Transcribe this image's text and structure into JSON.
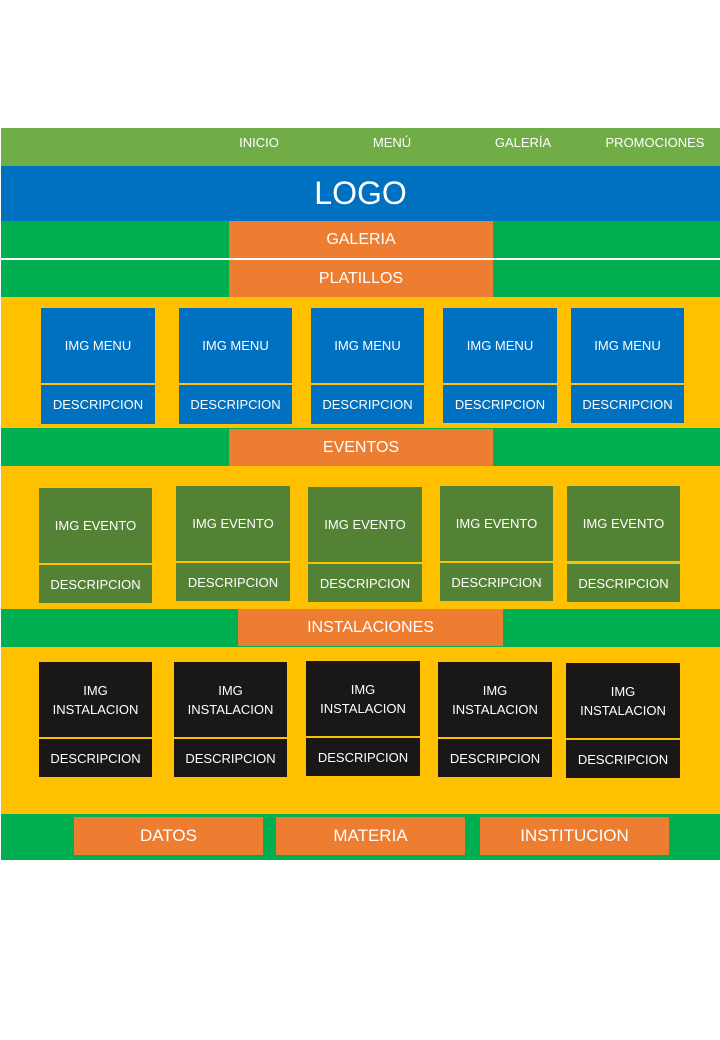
{
  "nav": {
    "items": [
      {
        "label": "INICIO"
      },
      {
        "label": "MENÚ"
      },
      {
        "label": "GALERÍA"
      },
      {
        "label": "PROMOCIONES"
      }
    ]
  },
  "header": {
    "logo": "LOGO"
  },
  "sections": {
    "galeria": "GALERIA",
    "platillos": "PLATILLOS",
    "eventos": "EVENTOS",
    "instalaciones": "INSTALACIONES"
  },
  "platillos": {
    "cards": [
      {
        "img": "IMG MENU",
        "desc": "DESCRIPCION"
      },
      {
        "img": "IMG MENU",
        "desc": "DESCRIPCION"
      },
      {
        "img": "IMG MENU",
        "desc": "DESCRIPCION"
      },
      {
        "img": "IMG MENU",
        "desc": "DESCRIPCION"
      },
      {
        "img": "IMG MENU",
        "desc": "DESCRIPCION"
      }
    ]
  },
  "eventos": {
    "cards": [
      {
        "img": "IMG EVENTO",
        "desc": "DESCRIPCION"
      },
      {
        "img": "IMG EVENTO",
        "desc": "DESCRIPCION"
      },
      {
        "img": "IMG EVENTO",
        "desc": "DESCRIPCION"
      },
      {
        "img": "IMG EVENTO",
        "desc": "DESCRIPCION"
      },
      {
        "img": "IMG EVENTO",
        "desc": "DESCRIPCION"
      }
    ]
  },
  "instalaciones": {
    "cards": [
      {
        "img": "IMG\nINSTALACION",
        "desc": "DESCRIPCION"
      },
      {
        "img": "IMG\nINSTALACION",
        "desc": "DESCRIPCION"
      },
      {
        "img": "IMG\nINSTALACION",
        "desc": "DESCRIPCION"
      },
      {
        "img": "IMG\nINSTALACION",
        "desc": "DESCRIPCION"
      },
      {
        "img": "IMG\nINSTALACION",
        "desc": "DESCRIPCION"
      }
    ]
  },
  "footer": {
    "items": [
      {
        "label": "DATOS"
      },
      {
        "label": "MATERIA"
      },
      {
        "label": "INSTITUCION"
      }
    ]
  },
  "colors": {
    "nav": "#70ad47",
    "logo_bar": "#0070c0",
    "band": "#00b050",
    "label": "#ed7d31",
    "panel": "#ffc000",
    "menu_card": "#0070c0",
    "event_card": "#548235",
    "install_card": "#1a1717"
  }
}
